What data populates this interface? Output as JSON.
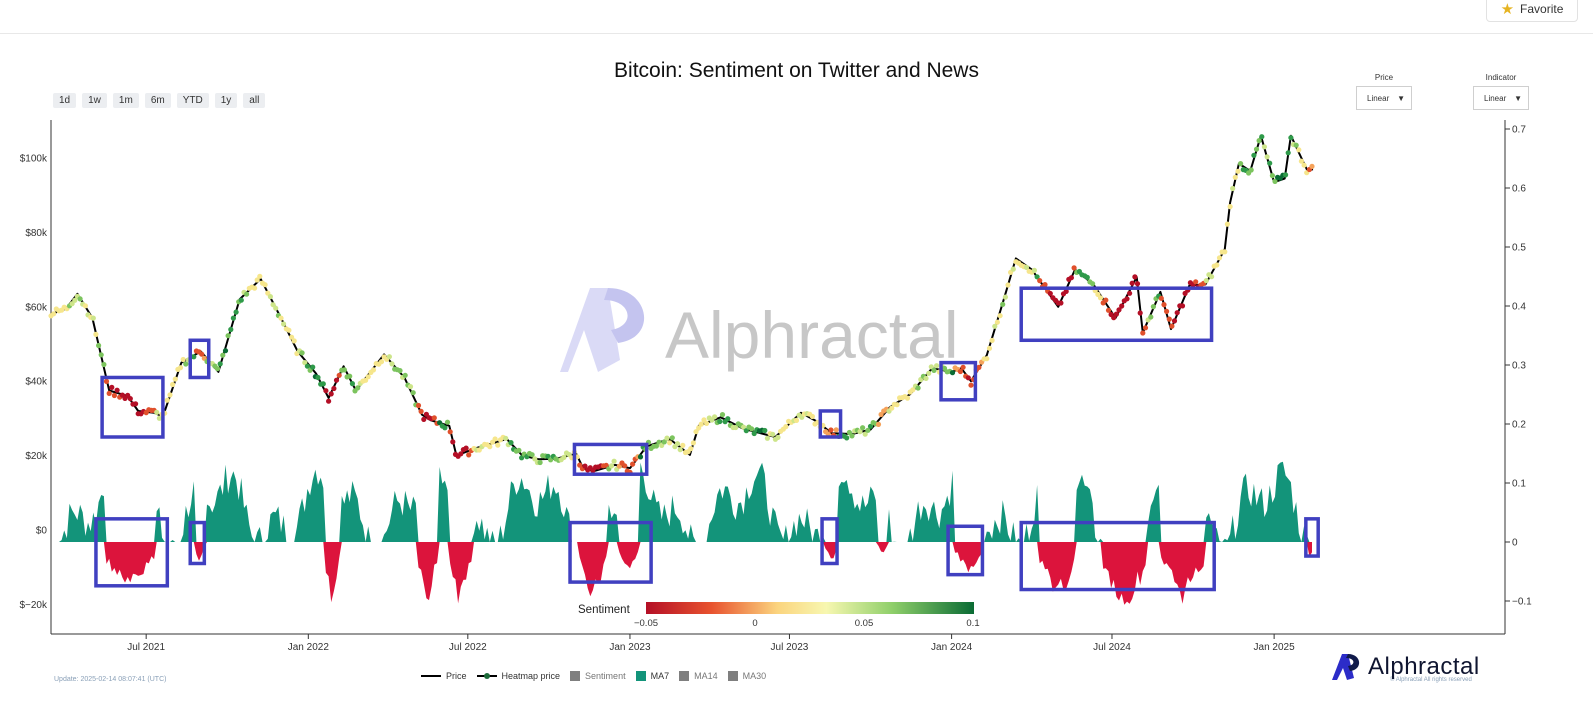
{
  "header": {
    "favorite_label": "Favorite"
  },
  "title": "Bitcoin: Sentiment on Twitter and News",
  "range_buttons": [
    "1d",
    "1w",
    "1m",
    "6m",
    "YTD",
    "1y",
    "all"
  ],
  "price_scale": {
    "label": "Price",
    "value": "Linear"
  },
  "indicator_scale": {
    "label": "Indicator",
    "value": "Linear"
  },
  "colorbar": {
    "title": "Sentiment",
    "ticks": [
      "−0.05",
      "0",
      "0.05",
      "0.1"
    ]
  },
  "legend": [
    {
      "label": "Price",
      "kind": "line",
      "color": "#000000",
      "active": true
    },
    {
      "label": "Heatmap price",
      "kind": "line-dot",
      "color": "#1c6b3a",
      "active": true
    },
    {
      "label": "Sentiment",
      "kind": "square",
      "color": "#7f7f7f",
      "active": false
    },
    {
      "label": "MA7",
      "kind": "square",
      "color": "#13947a",
      "active": true
    },
    {
      "label": "MA14",
      "kind": "square",
      "color": "#7f7f7f",
      "active": false
    },
    {
      "label": "MA30",
      "kind": "square",
      "color": "#7f7f7f",
      "active": false
    }
  ],
  "footer": {
    "update": "Update: 2025-02-14 08:07:41 (UTC)",
    "rights": "© Alphractal All rights reserved",
    "brand": "Alphractal"
  },
  "watermark": "Alphractal",
  "colors": {
    "positive": "#13947a",
    "negative": "#dc143c",
    "highlight_box": "#4040c0"
  },
  "chart_data": {
    "type": "line",
    "title": "Bitcoin: Sentiment on Twitter and News",
    "x_ticks": [
      "Jul 2021",
      "Jan 2022",
      "Jul 2022",
      "Jan 2023",
      "Jul 2023",
      "Jan 2024",
      "Jul 2024",
      "Jan 2025"
    ],
    "y_left": {
      "ticks": [
        "$−20k",
        "$0",
        "$20k",
        "$40k",
        "$60k",
        "$80k",
        "$100k"
      ],
      "range": [
        -28000,
        110000
      ]
    },
    "y_right": {
      "ticks": [
        "−0.1",
        "0",
        "0.1",
        "0.2",
        "0.3",
        "0.4",
        "0.5",
        "0.6",
        "0.7"
      ],
      "range": [
        -0.16,
        0.72
      ]
    },
    "x_range": [
      "2021-03-15",
      "2025-09-20"
    ],
    "price_series": {
      "name": "Price",
      "x": [
        "2021-03-15",
        "2021-04-01",
        "2021-04-14",
        "2021-05-01",
        "2021-05-20",
        "2021-06-10",
        "2021-06-22",
        "2021-07-10",
        "2021-07-20",
        "2021-08-10",
        "2021-09-01",
        "2021-09-21",
        "2021-10-15",
        "2021-11-08",
        "2021-12-01",
        "2021-12-20",
        "2022-01-10",
        "2022-01-24",
        "2022-02-10",
        "2022-02-24",
        "2022-03-28",
        "2022-04-20",
        "2022-05-10",
        "2022-05-20",
        "2022-06-10",
        "2022-06-18",
        "2022-07-10",
        "2022-08-01",
        "2022-08-14",
        "2022-09-01",
        "2022-09-20",
        "2022-10-10",
        "2022-11-01",
        "2022-11-09",
        "2022-11-21",
        "2022-12-15",
        "2023-01-01",
        "2023-01-20",
        "2023-02-15",
        "2023-03-10",
        "2023-03-20",
        "2023-04-14",
        "2023-05-10",
        "2023-06-15",
        "2023-07-14",
        "2023-08-01",
        "2023-08-18",
        "2023-09-10",
        "2023-10-01",
        "2023-10-23",
        "2023-11-15",
        "2023-12-10",
        "2024-01-01",
        "2024-01-12",
        "2024-01-23",
        "2024-02-10",
        "2024-02-28",
        "2024-03-14",
        "2024-04-01",
        "2024-05-01",
        "2024-05-20",
        "2024-06-10",
        "2024-07-05",
        "2024-07-29",
        "2024-08-05",
        "2024-08-25",
        "2024-09-06",
        "2024-09-27",
        "2024-10-15",
        "2024-10-29",
        "2024-11-06",
        "2024-11-12",
        "2024-11-22",
        "2024-12-05",
        "2024-12-17",
        "2025-01-01",
        "2025-01-13",
        "2025-01-20",
        "2025-02-01",
        "2025-02-08",
        "2025-02-14"
      ],
      "y": [
        58000,
        59500,
        63500,
        57000,
        37500,
        36000,
        32000,
        31500,
        30500,
        45000,
        48000,
        42500,
        62000,
        67500,
        57000,
        48000,
        42000,
        35500,
        44000,
        37500,
        47200,
        41000,
        31000,
        29500,
        28000,
        20000,
        22000,
        23500,
        24500,
        20000,
        19000,
        19200,
        20500,
        16500,
        15800,
        17500,
        16600,
        22500,
        24500,
        20200,
        28000,
        30300,
        27200,
        25000,
        31500,
        29200,
        26000,
        25800,
        27000,
        33000,
        36500,
        43500,
        42500,
        43500,
        40000,
        47000,
        61000,
        73000,
        70000,
        60000,
        70000,
        66000,
        57000,
        68000,
        53000,
        64000,
        54000,
        65800,
        66000,
        72000,
        75500,
        88000,
        98500,
        96500,
        106000,
        93500,
        94500,
        106000,
        100000,
        96500,
        97000
      ]
    },
    "sentiment_ma7": {
      "name": "MA7",
      "note": "oscillates roughly between −0.11 and +0.16"
    },
    "highlight_boxes": 15
  }
}
